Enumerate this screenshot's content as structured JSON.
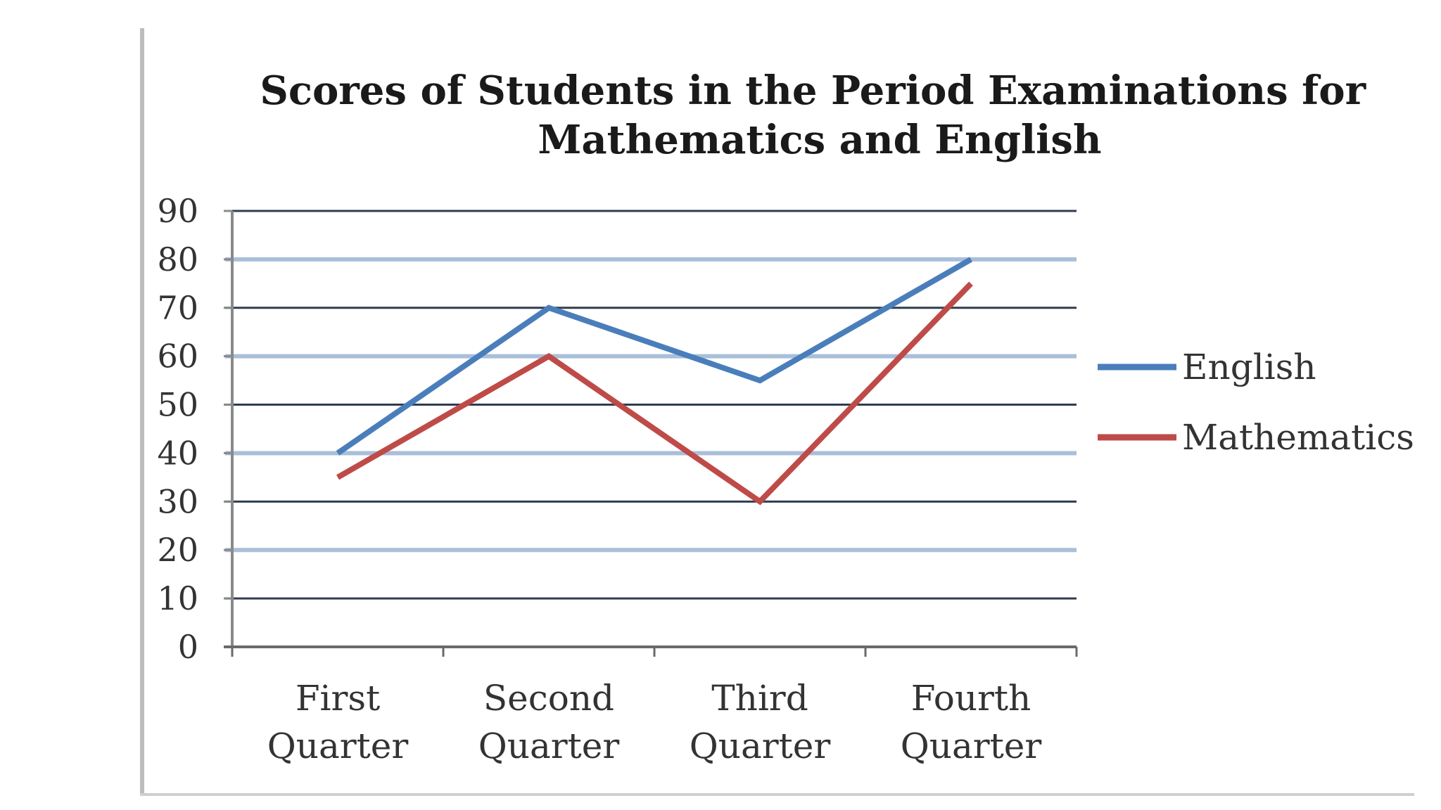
{
  "chart_data": {
    "type": "line",
    "title": [
      "Scores of Students in the Period Examinations for",
      "Mathematics and English"
    ],
    "categories": [
      [
        "First",
        "Quarter"
      ],
      [
        "Second",
        "Quarter"
      ],
      [
        "Third",
        "Quarter"
      ],
      [
        "Fourth",
        "Quarter"
      ]
    ],
    "series": [
      {
        "name": "English",
        "values": [
          40,
          70,
          55,
          80
        ],
        "color": "#4a7ebb"
      },
      {
        "name": "Mathematics",
        "values": [
          35,
          60,
          30,
          75
        ],
        "color": "#be4b48"
      }
    ],
    "ylim": [
      0,
      90
    ],
    "yticks": [
      0,
      10,
      20,
      30,
      40,
      50,
      60,
      70,
      80,
      90
    ],
    "grid": true,
    "legend": "right"
  }
}
